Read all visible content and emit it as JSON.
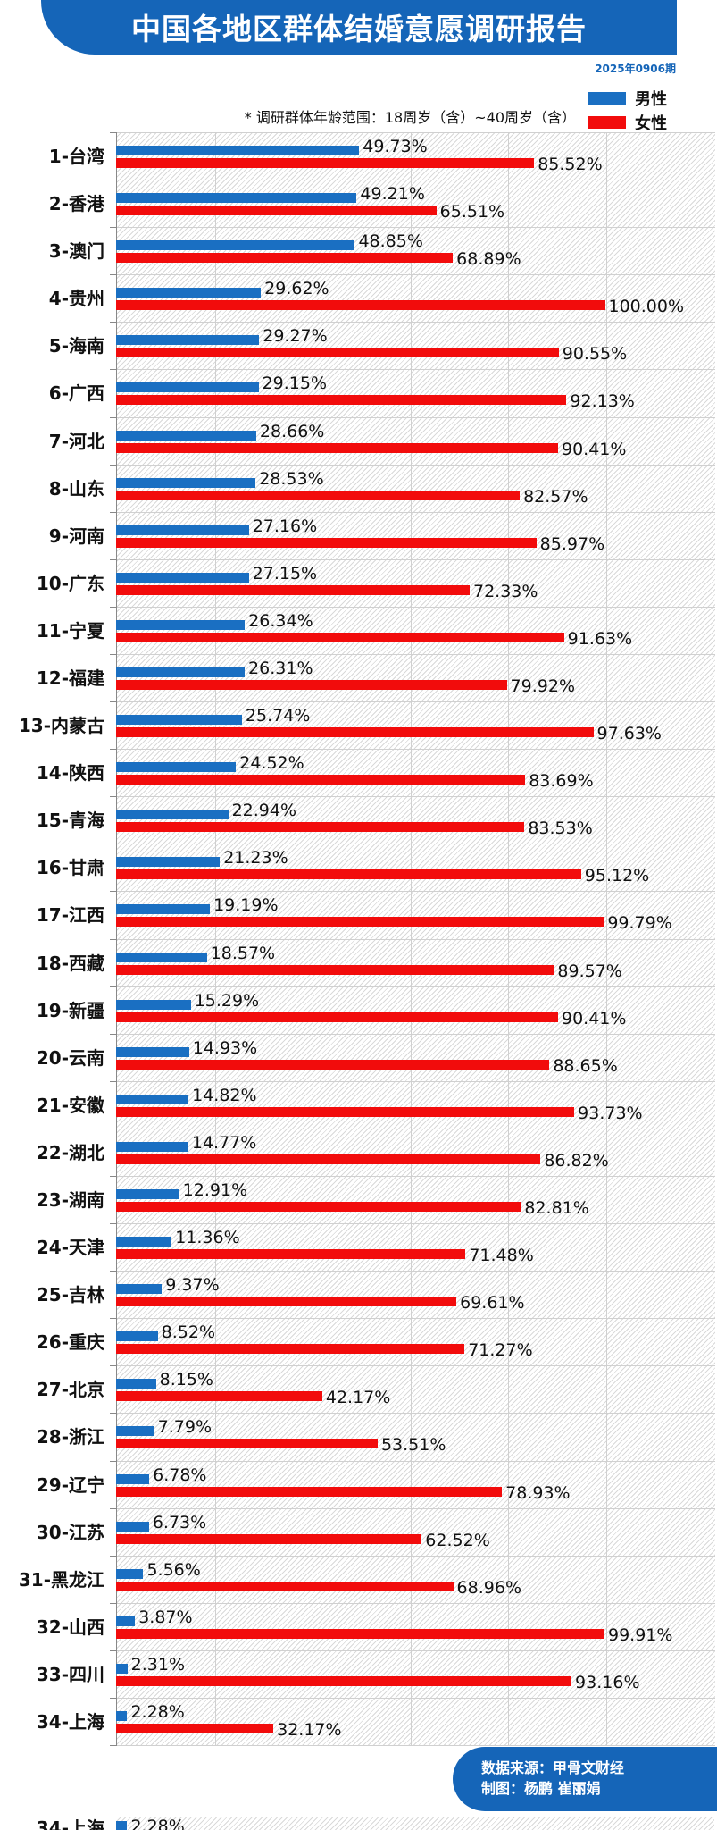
{
  "header": {
    "title": "中国各地区群体结婚意愿调研报告",
    "issue": "2025年0906期"
  },
  "legend": {
    "male": "男性",
    "female": "女性",
    "male_color": "#1a6fc2",
    "female_color": "#f20c0c"
  },
  "note": "* 调研群体年龄范围：18周岁（含）~40周岁（含）",
  "footer": {
    "source": "数据来源：甲骨文财经",
    "author": "制图：杨鹏  崔丽娟"
  },
  "chart_data": {
    "type": "bar",
    "orientation": "horizontal",
    "xlim": [
      0,
      120
    ],
    "grid": true,
    "legend_position": "top-right",
    "series": [
      {
        "name": "男性",
        "key": "male"
      },
      {
        "name": "女性",
        "key": "female"
      }
    ],
    "rows": [
      {
        "label": "1-台湾",
        "male": 49.73,
        "female": 85.52,
        "male_text": "49.73%",
        "female_text": "85.52%"
      },
      {
        "label": "2-香港",
        "male": 49.21,
        "female": 65.51,
        "male_text": "49.21%",
        "female_text": "65.51%"
      },
      {
        "label": "3-澳门",
        "male": 48.85,
        "female": 68.89,
        "male_text": "48.85%",
        "female_text": "68.89%"
      },
      {
        "label": "4-贵州",
        "male": 29.62,
        "female": 100.0,
        "male_text": "29.62%",
        "female_text": "100.00%"
      },
      {
        "label": "5-海南",
        "male": 29.27,
        "female": 90.55,
        "male_text": "29.27%",
        "female_text": "90.55%"
      },
      {
        "label": "6-广西",
        "male": 29.15,
        "female": 92.13,
        "male_text": "29.15%",
        "female_text": "92.13%"
      },
      {
        "label": "7-河北",
        "male": 28.66,
        "female": 90.41,
        "male_text": "28.66%",
        "female_text": "90.41%"
      },
      {
        "label": "8-山东",
        "male": 28.53,
        "female": 82.57,
        "male_text": "28.53%",
        "female_text": "82.57%"
      },
      {
        "label": "9-河南",
        "male": 27.16,
        "female": 85.97,
        "male_text": "27.16%",
        "female_text": "85.97%"
      },
      {
        "label": "10-广东",
        "male": 27.15,
        "female": 72.33,
        "male_text": "27.15%",
        "female_text": "72.33%"
      },
      {
        "label": "11-宁夏",
        "male": 26.34,
        "female": 91.63,
        "male_text": "26.34%",
        "female_text": "91.63%"
      },
      {
        "label": "12-福建",
        "male": 26.31,
        "female": 79.92,
        "male_text": "26.31%",
        "female_text": "79.92%"
      },
      {
        "label": "13-内蒙古",
        "male": 25.74,
        "female": 97.63,
        "male_text": "25.74%",
        "female_text": "97.63%"
      },
      {
        "label": "14-陕西",
        "male": 24.52,
        "female": 83.69,
        "male_text": "24.52%",
        "female_text": "83.69%"
      },
      {
        "label": "15-青海",
        "male": 22.94,
        "female": 83.53,
        "male_text": "22.94%",
        "female_text": "83.53%"
      },
      {
        "label": "16-甘肃",
        "male": 21.23,
        "female": 95.12,
        "male_text": "21.23%",
        "female_text": "95.12%"
      },
      {
        "label": "17-江西",
        "male": 19.19,
        "female": 99.79,
        "male_text": "19.19%",
        "female_text": "99.79%"
      },
      {
        "label": "18-西藏",
        "male": 18.57,
        "female": 89.57,
        "male_text": "18.57%",
        "female_text": "89.57%"
      },
      {
        "label": "19-新疆",
        "male": 15.29,
        "female": 90.41,
        "male_text": "15.29%",
        "female_text": "90.41%"
      },
      {
        "label": "20-云南",
        "male": 14.93,
        "female": 88.65,
        "male_text": "14.93%",
        "female_text": "88.65%"
      },
      {
        "label": "21-安徽",
        "male": 14.82,
        "female": 93.73,
        "male_text": "14.82%",
        "female_text": "93.73%"
      },
      {
        "label": "22-湖北",
        "male": 14.77,
        "female": 86.82,
        "male_text": "14.77%",
        "female_text": "86.82%"
      },
      {
        "label": "23-湖南",
        "male": 12.91,
        "female": 82.81,
        "male_text": "12.91%",
        "female_text": "82.81%"
      },
      {
        "label": "24-天津",
        "male": 11.36,
        "female": 71.48,
        "male_text": "11.36%",
        "female_text": "71.48%"
      },
      {
        "label": "25-吉林",
        "male": 9.37,
        "female": 69.61,
        "male_text": "9.37%",
        "female_text": "69.61%"
      },
      {
        "label": "26-重庆",
        "male": 8.52,
        "female": 71.27,
        "male_text": "8.52%",
        "female_text": "71.27%"
      },
      {
        "label": "27-北京",
        "male": 8.15,
        "female": 42.17,
        "male_text": "8.15%",
        "female_text": "42.17%"
      },
      {
        "label": "28-浙江",
        "male": 7.79,
        "female": 53.51,
        "male_text": "7.79%",
        "female_text": "53.51%"
      },
      {
        "label": "29-辽宁",
        "male": 6.78,
        "female": 78.93,
        "male_text": "6.78%",
        "female_text": "78.93%"
      },
      {
        "label": "30-江苏",
        "male": 6.73,
        "female": 62.52,
        "male_text": "6.73%",
        "female_text": "62.52%"
      },
      {
        "label": "31-黑龙江",
        "male": 5.56,
        "female": 68.96,
        "male_text": "5.56%",
        "female_text": "68.96%"
      },
      {
        "label": "32-山西",
        "male": 3.87,
        "female": 99.91,
        "male_text": "3.87%",
        "female_text": "99.91%"
      },
      {
        "label": "33-四川",
        "male": 2.31,
        "female": 93.16,
        "male_text": "2.31%",
        "female_text": "93.16%"
      },
      {
        "label": "34-上海",
        "male": 2.28,
        "female": 32.17,
        "male_text": "2.28%",
        "female_text": "32.17%"
      }
    ]
  }
}
